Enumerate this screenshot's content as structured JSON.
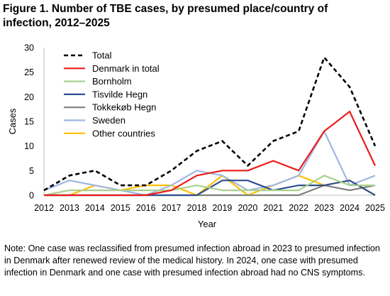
{
  "figure": {
    "title": "Figure 1. Number of TBE cases, by presumed place/country of infection, 2012–2025",
    "note": "Note: One case was reclassified from presumed infection abroad in 2023 to presumed infection in Denmark after renewed review of the medical history. In 2024, one case with presumed infection in Denmark and one case with presumed infection abroad had no CNS symptoms."
  },
  "chart_data": {
    "type": "line",
    "title": "",
    "xlabel": "Year",
    "ylabel": "Cases",
    "ylim": [
      0,
      30
    ],
    "yticks": [
      0,
      5,
      10,
      15,
      20,
      25,
      30
    ],
    "grid": false,
    "legend_position": "top-left",
    "x": [
      "2012",
      "2013",
      "2014",
      "2015",
      "2016",
      "2017",
      "2018",
      "2019",
      "2020",
      "2021",
      "2022",
      "2023",
      "2024",
      "2025"
    ],
    "series": [
      {
        "name": "Total",
        "color": "#000000",
        "dash": true,
        "values": [
          1,
          4,
          5,
          2,
          2,
          5,
          9,
          11,
          6,
          11,
          13,
          28,
          22,
          10
        ]
      },
      {
        "name": "Denmark in total",
        "color": "#ee1c1c",
        "dash": false,
        "values": [
          0,
          0,
          0,
          0,
          0,
          1,
          4,
          5,
          5,
          7,
          5,
          13,
          17,
          6
        ]
      },
      {
        "name": "Bornholm",
        "color": "#a9d18e",
        "dash": false,
        "values": [
          0,
          1,
          1,
          1,
          1,
          1,
          2,
          1,
          1,
          1,
          1,
          4,
          2,
          2
        ]
      },
      {
        "name": "Tisvilde Hegn",
        "color": "#2f4f8f",
        "dash": false,
        "values": [
          0,
          0,
          0,
          0,
          0,
          0,
          0,
          3,
          3,
          1,
          2,
          2,
          3,
          0
        ]
      },
      {
        "name": "Tokkekøb Hegn",
        "color": "#7f7f7f",
        "dash": false,
        "values": [
          0,
          0,
          0,
          0,
          0,
          0,
          0,
          0,
          0,
          0,
          0,
          2,
          1,
          2
        ]
      },
      {
        "name": "Sweden",
        "color": "#9fb6e2",
        "dash": false,
        "values": [
          1,
          3,
          2,
          1,
          0,
          2,
          5,
          4,
          1,
          2,
          4,
          13,
          2,
          4
        ]
      },
      {
        "name": "Other countries",
        "color": "#ffc000",
        "dash": false,
        "values": [
          0,
          0,
          2,
          1,
          2,
          2,
          0,
          4,
          0,
          2,
          4,
          2,
          3,
          0
        ]
      }
    ]
  }
}
